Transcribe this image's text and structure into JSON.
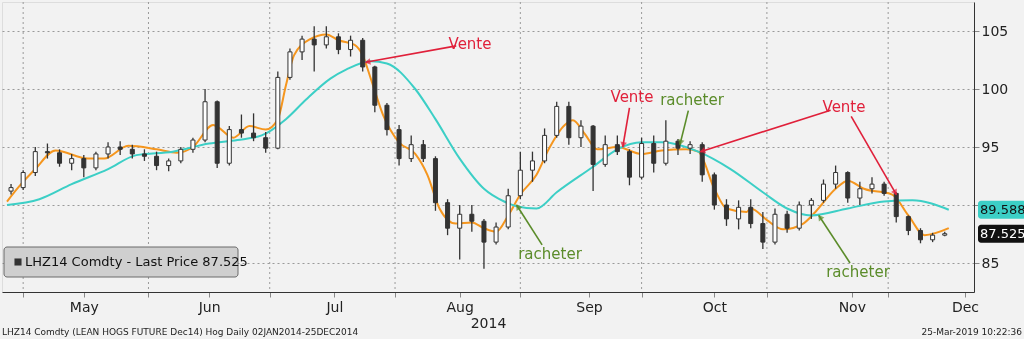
{
  "chart_data": {
    "type": "candlestick",
    "xlabel": "2014",
    "xlim": [
      "2014-04-27",
      "2014-12-21"
    ],
    "xticks": [
      {
        "value": "2014-05-01",
        "label": null
      },
      {
        "value": "2014-05-16",
        "label": "May"
      },
      {
        "value": "2014-06-01",
        "label": null
      },
      {
        "value": "2014-06-16",
        "label": "Jun"
      },
      {
        "value": "2014-07-01",
        "label": null
      },
      {
        "value": "2014-07-17",
        "label": "Jul"
      },
      {
        "value": "2014-08-01",
        "label": null
      },
      {
        "value": "2014-08-17",
        "label": "Aug"
      },
      {
        "value": "2014-09-01",
        "label": null
      },
      {
        "value": "2014-09-18",
        "label": "Sep"
      },
      {
        "value": "2014-10-01",
        "label": null
      },
      {
        "value": "2014-10-19",
        "label": "Oct"
      },
      {
        "value": "2014-11-01",
        "label": null
      },
      {
        "value": "2014-11-22",
        "label": "Nov"
      },
      {
        "value": "2014-12-01",
        "label": null
      },
      {
        "value": "2014-12-20",
        "label": "Dec"
      }
    ],
    "ylim": [
      82.5,
      107.5
    ],
    "yticks": [
      85,
      {
        "value": 90,
        "label": null
      },
      95,
      100,
      105
    ],
    "grid": true,
    "legend": "bottom left",
    "series": [
      {
        "name": "LHZ14 Comdty - Last Price 87.525",
        "color": "#333333",
        "x": [
          "2014-04-28",
          "2014-05-01",
          "2014-05-04",
          "2014-05-07",
          "2014-05-10",
          "2014-05-13",
          "2014-05-16",
          "2014-05-19",
          "2014-05-22",
          "2014-05-25",
          "2014-05-28",
          "2014-05-31",
          "2014-06-03",
          "2014-06-06",
          "2014-06-09",
          "2014-06-12",
          "2014-06-15",
          "2014-06-18",
          "2014-06-21",
          "2014-06-24",
          "2014-06-27",
          "2014-06-30",
          "2014-07-03",
          "2014-07-06",
          "2014-07-09",
          "2014-07-12",
          "2014-07-15",
          "2014-07-18",
          "2014-07-21",
          "2014-07-24",
          "2014-07-27",
          "2014-07-30",
          "2014-08-02",
          "2014-08-05",
          "2014-08-08",
          "2014-08-11",
          "2014-08-14",
          "2014-08-17",
          "2014-08-20",
          "2014-08-23",
          "2014-08-26",
          "2014-08-29",
          "2014-09-01",
          "2014-09-04",
          "2014-09-07",
          "2014-09-10",
          "2014-09-13",
          "2014-09-16",
          "2014-09-19",
          "2014-09-22",
          "2014-09-25",
          "2014-09-28",
          "2014-10-01",
          "2014-10-04",
          "2014-10-07",
          "2014-10-10",
          "2014-10-13",
          "2014-10-16",
          "2014-10-19",
          "2014-10-22",
          "2014-10-25",
          "2014-10-28",
          "2014-10-31",
          "2014-11-03",
          "2014-11-06",
          "2014-11-09",
          "2014-11-12",
          "2014-11-15",
          "2014-11-18",
          "2014-11-21",
          "2014-11-24",
          "2014-11-27",
          "2014-11-30",
          "2014-12-03",
          "2014-12-06",
          "2014-12-09",
          "2014-12-12",
          "2014-12-15"
        ],
        "ohlc": [
          [
            91.2,
            91.8,
            90.9,
            91.5
          ],
          [
            91.5,
            93.0,
            91.3,
            92.8
          ],
          [
            92.8,
            95.0,
            92.5,
            94.6
          ],
          [
            94.6,
            95.3,
            94.0,
            94.5
          ],
          [
            94.5,
            94.8,
            93.3,
            93.6
          ],
          [
            93.6,
            94.4,
            93.0,
            94.0
          ],
          [
            94.0,
            94.3,
            92.4,
            93.2
          ],
          [
            93.2,
            94.6,
            93.0,
            94.4
          ],
          [
            94.4,
            95.4,
            94.0,
            95.0
          ],
          [
            95.0,
            95.5,
            94.3,
            94.8
          ],
          [
            94.8,
            95.2,
            94.0,
            94.4
          ],
          [
            94.4,
            94.8,
            93.8,
            94.2
          ],
          [
            94.2,
            94.6,
            93.0,
            93.4
          ],
          [
            93.4,
            94.0,
            92.9,
            93.8
          ],
          [
            93.8,
            95.0,
            93.6,
            94.8
          ],
          [
            94.8,
            95.8,
            94.5,
            95.6
          ],
          [
            95.6,
            100.0,
            95.4,
            98.9
          ],
          [
            98.9,
            99.0,
            93.2,
            93.6
          ],
          [
            93.6,
            96.8,
            93.4,
            96.5
          ],
          [
            96.5,
            97.8,
            95.8,
            96.2
          ],
          [
            96.2,
            97.9,
            95.5,
            95.8
          ],
          [
            95.8,
            96.3,
            94.5,
            94.9
          ],
          [
            94.9,
            101.5,
            94.8,
            101.0
          ],
          [
            101.0,
            103.5,
            100.8,
            103.2
          ],
          [
            103.2,
            104.6,
            102.5,
            104.3
          ],
          [
            104.3,
            105.4,
            101.5,
            103.8
          ],
          [
            103.8,
            105.4,
            103.5,
            104.5
          ],
          [
            104.5,
            104.8,
            103.0,
            103.4
          ],
          [
            103.4,
            104.6,
            102.8,
            104.2
          ],
          [
            104.2,
            104.4,
            101.5,
            101.9
          ],
          [
            101.9,
            102.0,
            98.0,
            98.6
          ],
          [
            98.6,
            98.8,
            96.0,
            96.5
          ],
          [
            96.5,
            96.9,
            93.4,
            94.0
          ],
          [
            94.0,
            96.0,
            93.7,
            95.2
          ],
          [
            95.2,
            95.6,
            93.7,
            94.0
          ],
          [
            94.0,
            94.2,
            89.5,
            90.2
          ],
          [
            90.2,
            90.5,
            87.4,
            88.0
          ],
          [
            88.0,
            90.0,
            85.3,
            89.2
          ],
          [
            89.2,
            90.0,
            87.7,
            88.6
          ],
          [
            88.6,
            88.8,
            84.5,
            86.8
          ],
          [
            86.8,
            88.5,
            86.6,
            88.1
          ],
          [
            88.1,
            91.4,
            87.9,
            90.8
          ],
          [
            90.8,
            94.6,
            90.5,
            93.0
          ],
          [
            93.0,
            94.6,
            92.0,
            93.8
          ],
          [
            93.8,
            96.6,
            93.6,
            96.0
          ],
          [
            96.0,
            98.9,
            95.8,
            98.5
          ],
          [
            98.5,
            98.9,
            95.2,
            95.8
          ],
          [
            95.8,
            97.3,
            95.0,
            96.8
          ],
          [
            96.8,
            96.9,
            91.2,
            93.5
          ],
          [
            93.5,
            96.0,
            93.3,
            95.2
          ],
          [
            95.2,
            96.0,
            94.3,
            94.6
          ],
          [
            94.6,
            94.8,
            91.7,
            92.4
          ],
          [
            92.4,
            95.8,
            92.2,
            95.3
          ],
          [
            95.3,
            96.0,
            92.8,
            93.6
          ],
          [
            93.6,
            97.3,
            93.4,
            95.5
          ],
          [
            95.5,
            95.7,
            94.3,
            94.9
          ],
          [
            94.9,
            95.5,
            94.4,
            95.2
          ],
          [
            95.2,
            95.4,
            92.0,
            92.6
          ],
          [
            92.6,
            92.8,
            89.6,
            90.0
          ],
          [
            90.0,
            90.5,
            88.2,
            88.8
          ],
          [
            88.8,
            90.4,
            87.9,
            89.8
          ],
          [
            89.8,
            90.5,
            88.0,
            88.4
          ],
          [
            88.4,
            89.4,
            86.2,
            86.8
          ],
          [
            86.8,
            89.7,
            86.6,
            89.2
          ],
          [
            89.2,
            89.5,
            87.6,
            88.0
          ],
          [
            88.0,
            90.3,
            87.8,
            90.0
          ],
          [
            90.0,
            90.6,
            88.8,
            90.4
          ],
          [
            90.4,
            92.2,
            90.2,
            91.8
          ],
          [
            91.8,
            93.4,
            91.4,
            92.8
          ],
          [
            92.8,
            92.9,
            90.2,
            90.6
          ],
          [
            90.6,
            92.0,
            90.0,
            91.4
          ],
          [
            91.4,
            92.4,
            91.0,
            91.8
          ],
          [
            91.8,
            92.0,
            90.8,
            91.0
          ],
          [
            91.0,
            91.1,
            88.5,
            89.0
          ],
          [
            89.0,
            89.1,
            87.4,
            87.8
          ],
          [
            87.8,
            88.0,
            86.7,
            87.0
          ],
          [
            87.0,
            87.6,
            86.8,
            87.4
          ],
          [
            87.4,
            87.7,
            87.3,
            87.525
          ]
        ]
      },
      {
        "type": "line",
        "color": "#f5961e",
        "x": [
          "2014-04-27",
          "2014-04-30",
          "2014-05-04",
          "2014-05-09",
          "2014-05-17",
          "2014-05-21",
          "2014-05-27",
          "2014-06-03",
          "2014-06-08",
          "2014-06-12",
          "2014-06-17",
          "2014-06-22",
          "2014-06-26",
          "2014-06-30",
          "2014-07-03",
          "2014-07-05",
          "2014-07-07",
          "2014-07-11",
          "2014-07-15",
          "2014-07-18",
          "2014-07-22",
          "2014-07-24",
          "2014-07-26",
          "2014-07-29",
          "2014-08-02",
          "2014-08-06",
          "2014-08-09",
          "2014-08-12",
          "2014-08-16",
          "2014-08-20",
          "2014-08-23",
          "2014-08-26",
          "2014-08-29",
          "2014-09-01",
          "2014-09-05",
          "2014-09-08",
          "2014-09-12",
          "2014-09-14",
          "2014-09-17",
          "2014-09-20",
          "2014-09-25",
          "2014-10-01",
          "2014-10-06",
          "2014-10-12",
          "2014-10-15",
          "2014-10-19",
          "2014-10-22",
          "2014-10-27",
          "2014-10-28",
          "2014-11-01",
          "2014-11-05",
          "2014-11-10",
          "2014-11-13",
          "2014-11-18",
          "2014-11-21",
          "2014-11-25",
          "2014-12-02",
          "2014-12-06",
          "2014-12-10",
          "2014-12-16"
        ],
        "values": [
          90.3,
          91.6,
          93.1,
          94.7,
          94.0,
          94.0,
          95.1,
          94.8,
          94.5,
          95.0,
          96.9,
          95.8,
          96.8,
          96.5,
          97.4,
          100.3,
          102.9,
          104.3,
          104.7,
          104.2,
          103.8,
          102.9,
          100.9,
          97.8,
          95.4,
          94.4,
          92.6,
          89.7,
          88.4,
          88.5,
          88.0,
          87.7,
          89.1,
          90.9,
          92.6,
          94.8,
          96.9,
          97.3,
          96.1,
          94.8,
          95.0,
          94.4,
          94.7,
          94.8,
          94.6,
          91.4,
          89.7,
          89.4,
          89.7,
          88.7,
          87.9,
          88.4,
          89.4,
          91.4,
          92.1,
          91.4,
          90.9,
          89.1,
          87.4,
          88.0
        ]
      },
      {
        "type": "line",
        "color": "#3ccfc6",
        "x": [
          "2014-04-27",
          "2014-05-05",
          "2014-05-13",
          "2014-05-22",
          "2014-05-29",
          "2014-06-07",
          "2014-06-16",
          "2014-06-23",
          "2014-06-29",
          "2014-07-05",
          "2014-07-10",
          "2014-07-16",
          "2014-07-20",
          "2014-07-26",
          "2014-07-30",
          "2014-08-06",
          "2014-08-11",
          "2014-08-17",
          "2014-08-23",
          "2014-08-28",
          "2014-08-31",
          "2014-09-05",
          "2014-09-10",
          "2014-09-19",
          "2014-09-25",
          "2014-10-01",
          "2014-10-06",
          "2014-10-15",
          "2014-10-23",
          "2014-10-31",
          "2014-11-06",
          "2014-11-12",
          "2014-11-21",
          "2014-11-30",
          "2014-12-07",
          "2014-12-16"
        ],
        "values": [
          90.0,
          90.5,
          91.8,
          93.1,
          94.3,
          94.6,
          95.3,
          95.6,
          96.0,
          97.4,
          99.1,
          100.9,
          101.7,
          102.4,
          102.2,
          100.0,
          97.4,
          94.0,
          91.4,
          90.3,
          89.9,
          89.7,
          91.1,
          93.3,
          94.8,
          95.4,
          95.4,
          94.6,
          93.1,
          91.1,
          89.7,
          89.1,
          89.7,
          90.3,
          90.4,
          89.588
        ]
      }
    ],
    "annotations": [
      {
        "text": "Vente",
        "x": "2014-07-25",
        "y": 102.3
      },
      {
        "text": "Vente",
        "x": "2014-09-26",
        "y": 95.0
      },
      {
        "text": "racheter",
        "x": "2014-08-31",
        "y": 90.0
      },
      {
        "text": "racheter",
        "x": "2014-10-10",
        "y": 95.2
      },
      {
        "text": "Vente",
        "x": "2014-10-15",
        "y": 94.6
      },
      {
        "text": "racheter",
        "x": "2014-11-13",
        "y": 89.1
      },
      "89.588",
      "87.525",
      "LHZ14 Comdty (LEAN HOGS FUTURE Dec14) Hog Daily 02JAN2014-25DEC2014",
      "25-Mar-2019 10:22:36"
    ]
  }
}
